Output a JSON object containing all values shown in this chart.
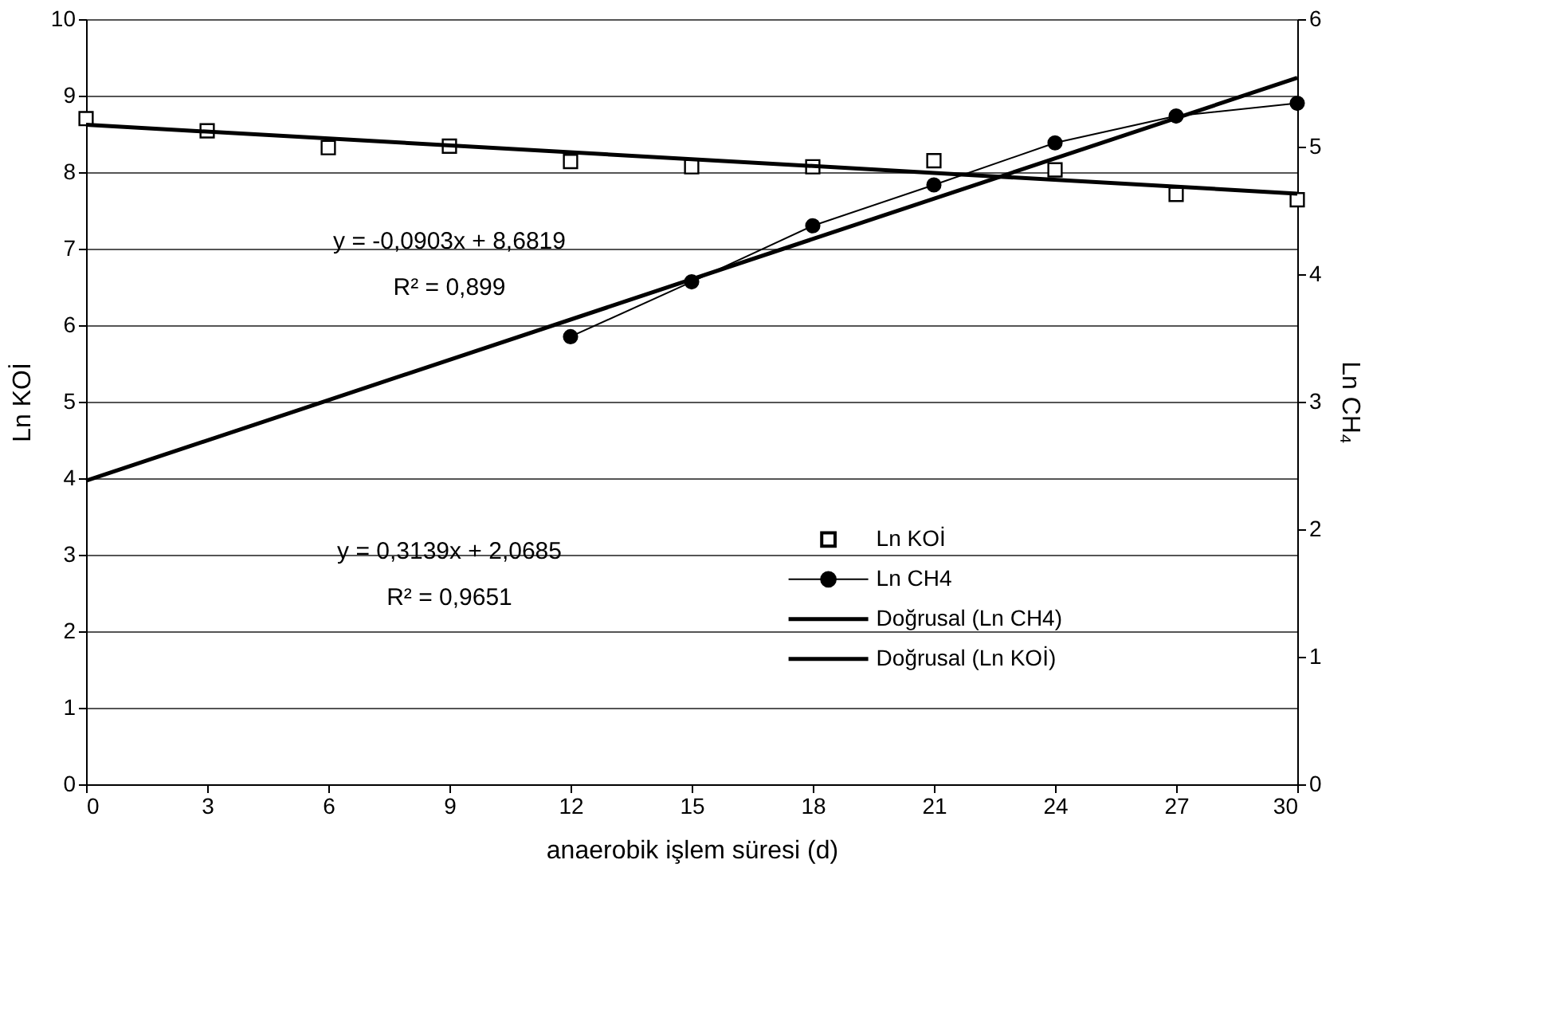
{
  "chart_data": {
    "type": "scatter",
    "xlabel": "anaerobik işlem süresi (d)",
    "ylabel": "Ln KOİ",
    "y2label": "Ln CH₄",
    "xlim": [
      0,
      30
    ],
    "xticks": [
      0,
      3,
      6,
      9,
      12,
      15,
      18,
      21,
      24,
      27,
      30
    ],
    "ylim": [
      0,
      10
    ],
    "yticks": [
      0,
      1,
      2,
      3,
      4,
      5,
      6,
      7,
      8,
      9,
      10
    ],
    "y2lim": [
      0,
      6
    ],
    "y2ticks": [
      0,
      1,
      2,
      3,
      4,
      5,
      6
    ],
    "grid": "y",
    "legend": "bottom right",
    "series": [
      {
        "name": "Ln KOİ",
        "type": "scatter",
        "marker": "square",
        "color": "#000000",
        "x": [
          0,
          3,
          6,
          9,
          12,
          15,
          18,
          21,
          24,
          27,
          30
        ],
        "values": [
          8.7,
          8.54,
          8.32,
          8.34,
          8.14,
          8.07,
          8.07,
          8.15,
          8.03,
          7.71,
          7.64
        ]
      },
      {
        "name": "Ln CH4",
        "type": "line",
        "marker": "circle",
        "axis": "y2",
        "color": "#000000",
        "x": [
          12,
          15,
          18,
          21,
          24,
          27,
          30
        ],
        "values": [
          3.51,
          3.94,
          4.38,
          4.7,
          5.03,
          5.24,
          5.34
        ]
      },
      {
        "name": "Doğrusal (Ln CH4)",
        "type": "line",
        "marker": "none",
        "axis": "y2",
        "color": "#000000",
        "x": [
          0,
          30
        ],
        "values": [
          2.38,
          5.54
        ]
      },
      {
        "name": "Doğrusal (Ln KOİ)",
        "type": "line",
        "marker": "none",
        "color": "#000000",
        "x": [
          0,
          30
        ],
        "values": [
          8.62,
          7.72
        ]
      }
    ],
    "annotations": [
      "y = -0,0903x + 8,6819",
      "R² = 0,899",
      "y = 0,3139x + 2,0685",
      "R² = 0,9651"
    ]
  }
}
